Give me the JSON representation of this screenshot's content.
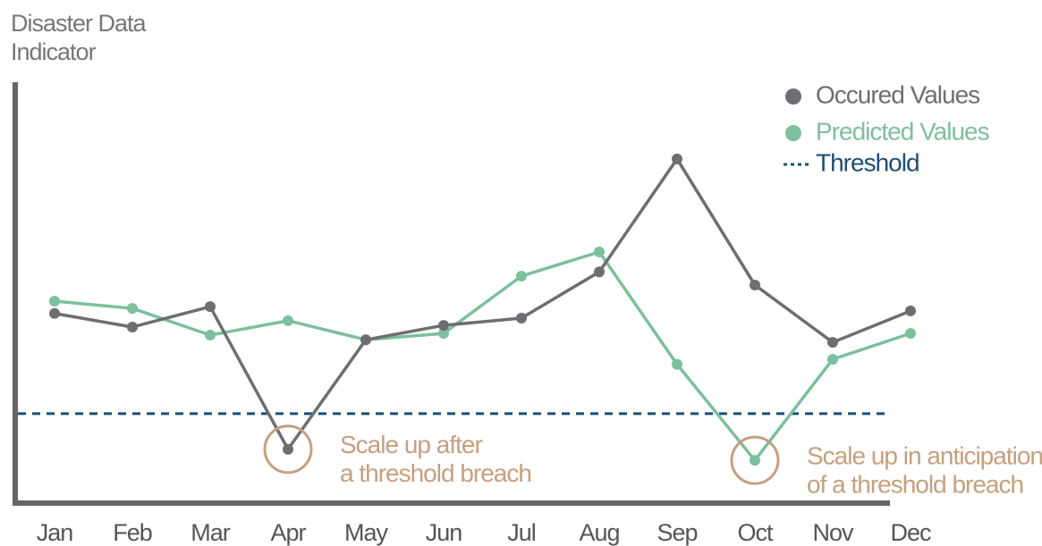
{
  "chart_data": {
    "type": "line",
    "title": [
      "Disaster Data",
      "Indicator"
    ],
    "categories": [
      "Jan",
      "Feb",
      "Mar",
      "Apr",
      "May",
      "Jun",
      "Jul",
      "Aug",
      "Sep",
      "Oct",
      "Nov",
      "Dec"
    ],
    "series": [
      {
        "name": "Occured Values",
        "color": "#6d6e71",
        "values": [
          45.1,
          41.9,
          46.7,
          13.1,
          38.9,
          42.3,
          44.0,
          54.9,
          81.5,
          51.8,
          38.3,
          45.7
        ]
      },
      {
        "name": "Predicted Values",
        "color": "#7dbf9e",
        "values": [
          48.0,
          46.3,
          40.0,
          43.4,
          38.9,
          40.4,
          53.9,
          59.6,
          33.1,
          10.5,
          34.3,
          40.4
        ]
      }
    ],
    "threshold": {
      "name": "Threshold",
      "value": 21.5,
      "color": "#1d4e74"
    },
    "annotations": [
      {
        "lines": [
          "Scale up after",
          "a threshold breach"
        ],
        "category": "Apr",
        "color": "#c4a07f"
      },
      {
        "lines": [
          "Scale up in anticipation",
          "of a threshold breach"
        ],
        "category": "Oct",
        "color": "#c4a07f"
      }
    ],
    "ylim": [
      0,
      100
    ],
    "legend": "upper right"
  }
}
